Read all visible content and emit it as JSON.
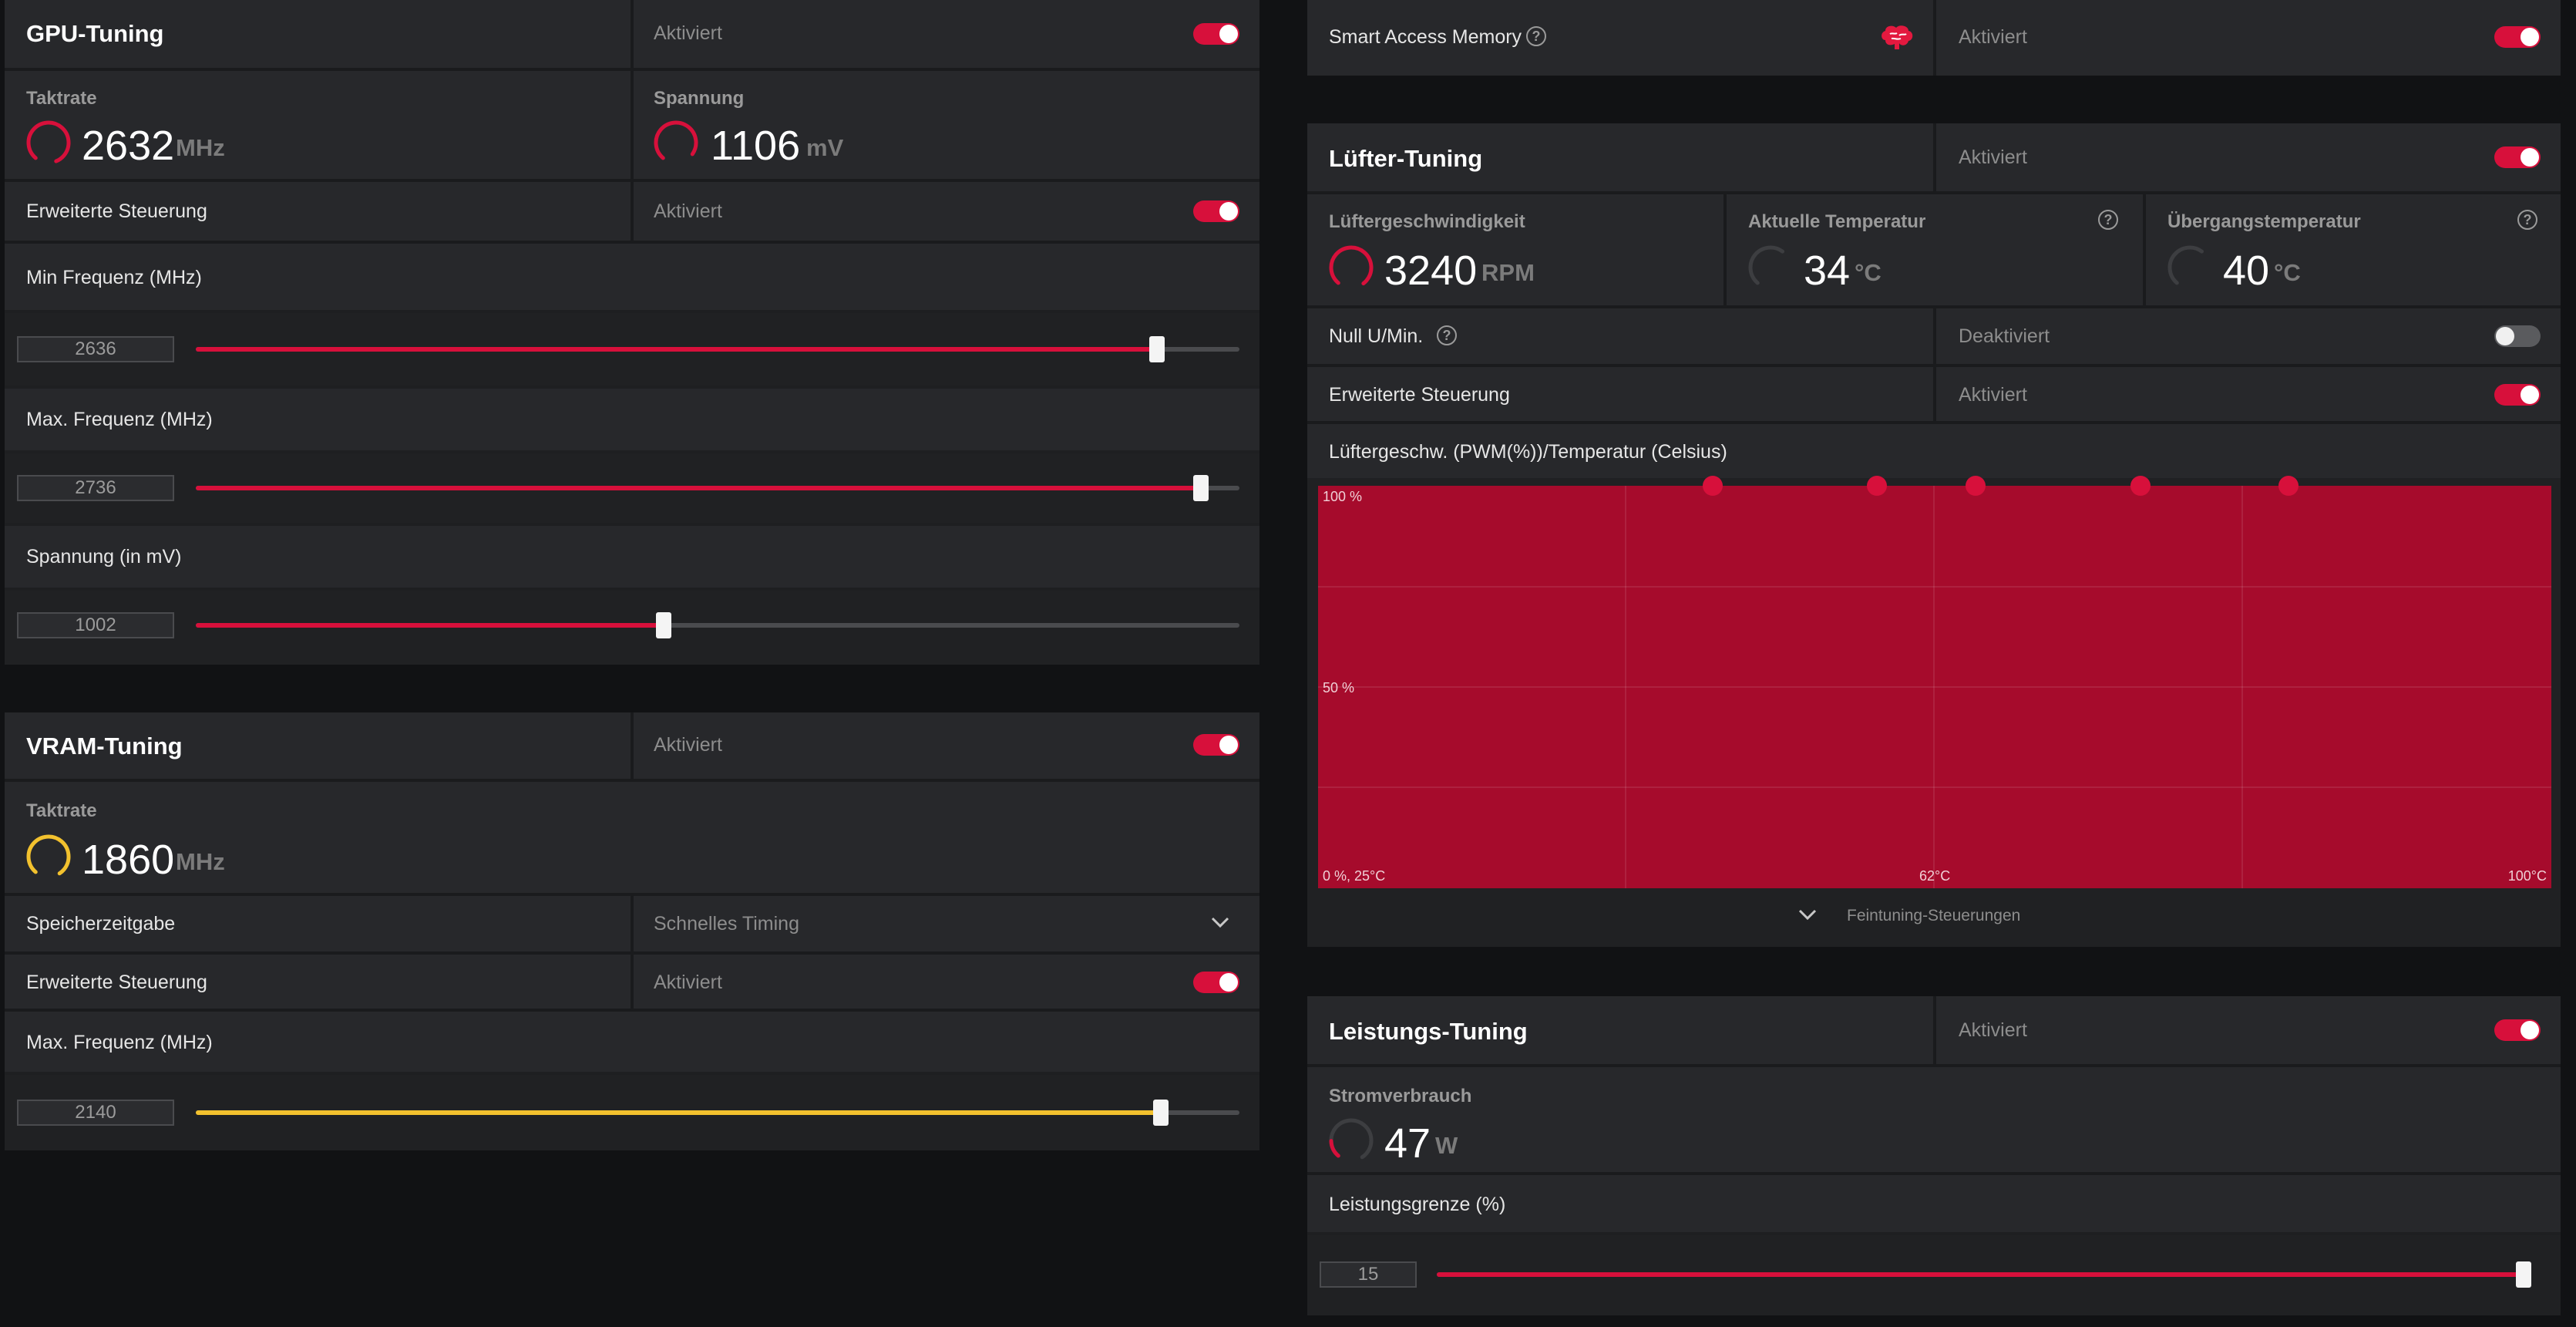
{
  "gpu_tuning": {
    "title": "GPU-Tuning",
    "status": "Aktiviert",
    "clock": {
      "label": "Taktrate",
      "value": "2632",
      "unit": "MHz"
    },
    "voltage": {
      "label": "Spannung",
      "value": "1106",
      "unit": "mV"
    },
    "advanced": {
      "label": "Erweiterte Steuerung",
      "status": "Aktiviert"
    },
    "min_freq": {
      "label": "Min Frequenz (MHz)",
      "value": "2636",
      "fraction": 0.921
    },
    "max_freq": {
      "label": "Max. Frequenz (MHz)",
      "value": "2736",
      "fraction": 0.963
    },
    "voltage_slider": {
      "label": "Spannung (in mV)",
      "value": "1002",
      "fraction": 0.448
    }
  },
  "vram_tuning": {
    "title": "VRAM-Tuning",
    "status": "Aktiviert",
    "clock": {
      "label": "Taktrate",
      "value": "1860",
      "unit": "MHz"
    },
    "memory_timing": {
      "label": "Speicherzeitgabe",
      "value": "Schnelles Timing"
    },
    "advanced": {
      "label": "Erweiterte Steuerung",
      "status": "Aktiviert"
    },
    "max_freq": {
      "label": "Max. Frequenz (MHz)",
      "value": "2140",
      "fraction": 0.925
    }
  },
  "smart_access_memory": {
    "label": "Smart Access Memory",
    "status": "Aktiviert"
  },
  "fan_tuning": {
    "title": "Lüfter-Tuning",
    "status": "Aktiviert",
    "fan_speed": {
      "label": "Lüftergeschwindigkeit",
      "value": "3240",
      "unit": "RPM"
    },
    "current_temp": {
      "label": "Aktuelle Temperatur",
      "value": "34",
      "unit": "°C"
    },
    "junction_temp": {
      "label": "Übergangstemperatur",
      "value": "40",
      "unit": "°C"
    },
    "zero_rpm": {
      "label": "Null U/Min.",
      "status": "Deaktiviert"
    },
    "advanced": {
      "label": "Erweiterte Steuerung",
      "status": "Aktiviert"
    },
    "curve": {
      "label": "Lüftergeschw. (PWM(%))/Temperatur (Celsius)",
      "y_top": "100 %",
      "y_mid": "50 %",
      "x_start": "0 %, 25°C",
      "x_mid": "62°C",
      "x_end": "100°C",
      "point_fractions": [
        0.32,
        0.453,
        0.533,
        0.667,
        0.787
      ]
    },
    "fine_tuning": "Feintuning-Steuerungen"
  },
  "power_tuning": {
    "title": "Leistungs-Tuning",
    "status": "Aktiviert",
    "power": {
      "label": "Stromverbrauch",
      "value": "47",
      "unit": "W"
    },
    "limit": {
      "label": "Leistungsgrenze (%)",
      "value": "15",
      "fraction": 1.0
    }
  },
  "colors": {
    "accent": "#d7103b",
    "vram_accent": "#f2c12e"
  }
}
